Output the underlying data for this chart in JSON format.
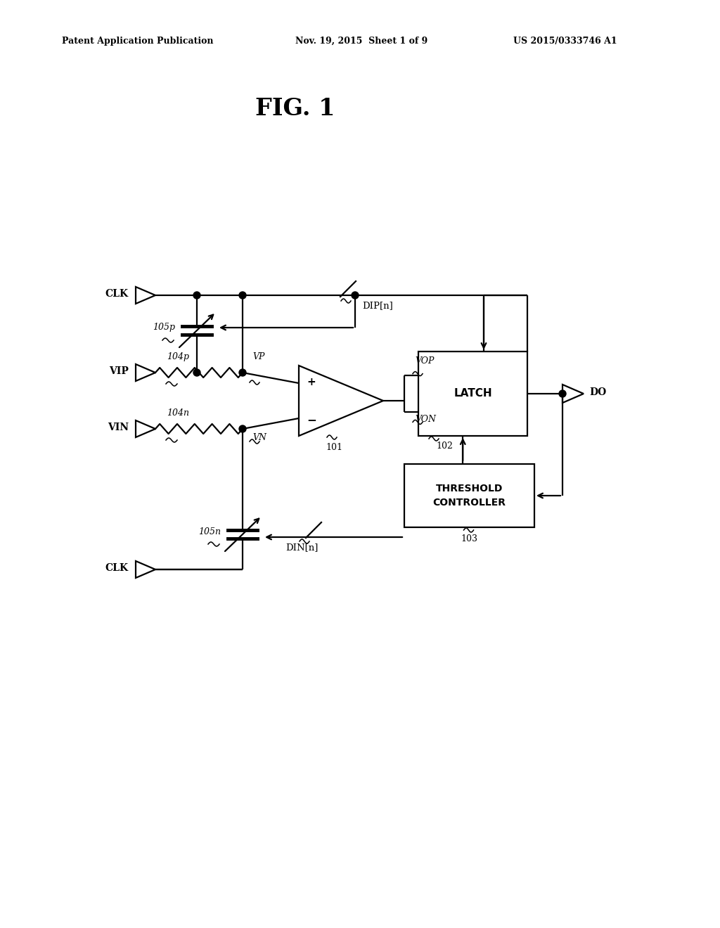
{
  "title": "FIG. 1",
  "header_left": "Patent Application Publication",
  "header_mid": "Nov. 19, 2015  Sheet 1 of 9",
  "header_right": "US 2015/0333746 A1",
  "bg_color": "#ffffff",
  "line_color": "#000000",
  "lw": 1.6
}
